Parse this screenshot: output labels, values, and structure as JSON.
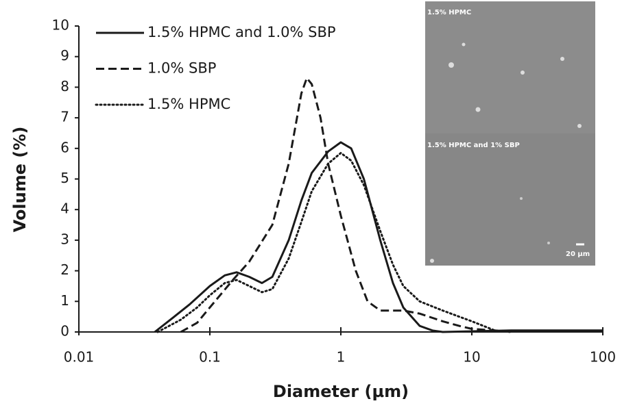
{
  "chart_data": {
    "type": "line",
    "x_label": "Diameter (µm)",
    "y_label": "Volume (%)",
    "x_scale": "log",
    "xlim": [
      0.01,
      100
    ],
    "xticks": [
      0.01,
      0.1,
      1,
      10,
      100
    ],
    "ylim": [
      0,
      10
    ],
    "yticks": [
      0,
      1,
      2,
      3,
      4,
      5,
      6,
      7,
      8,
      9,
      10
    ],
    "legend": "upper left",
    "series": [
      {
        "name": "1.5% HPMC and 1.0% SBP",
        "color": "#1a1a1a",
        "dash": "solid",
        "x": [
          0.038,
          0.05,
          0.07,
          0.1,
          0.13,
          0.16,
          0.2,
          0.25,
          0.3,
          0.4,
          0.5,
          0.6,
          0.8,
          1.0,
          1.2,
          1.5,
          2,
          2.5,
          3,
          4,
          5,
          6,
          20,
          100
        ],
        "values": [
          0,
          0.4,
          0.9,
          1.5,
          1.85,
          1.95,
          1.8,
          1.6,
          1.8,
          3.0,
          4.3,
          5.2,
          5.9,
          6.2,
          6.0,
          5.0,
          3.0,
          1.6,
          0.8,
          0.2,
          0.05,
          0,
          0.05,
          0.05
        ]
      },
      {
        "name": "1.0% SBP",
        "color": "#1a1a1a",
        "dash": "dashed",
        "x": [
          0.06,
          0.08,
          0.1,
          0.15,
          0.2,
          0.3,
          0.4,
          0.5,
          0.55,
          0.6,
          0.7,
          0.8,
          1,
          1.3,
          1.6,
          2,
          3,
          4,
          6,
          8,
          10,
          15,
          20
        ],
        "values": [
          0,
          0.3,
          0.8,
          1.7,
          2.3,
          3.5,
          5.5,
          7.8,
          8.3,
          8.1,
          7.0,
          5.5,
          3.8,
          2.0,
          1.0,
          0.7,
          0.7,
          0.6,
          0.35,
          0.2,
          0.1,
          0.05,
          0
        ]
      },
      {
        "name": "1.5% HPMC",
        "color": "#1a1a1a",
        "dash": "dotted",
        "x": [
          0.04,
          0.06,
          0.08,
          0.1,
          0.13,
          0.16,
          0.2,
          0.25,
          0.3,
          0.4,
          0.5,
          0.6,
          0.8,
          1,
          1.2,
          1.5,
          2,
          2.5,
          3,
          4,
          6,
          8,
          10,
          15,
          20
        ],
        "values": [
          0,
          0.4,
          0.8,
          1.2,
          1.6,
          1.7,
          1.5,
          1.3,
          1.4,
          2.4,
          3.6,
          4.6,
          5.5,
          5.85,
          5.6,
          4.8,
          3.3,
          2.2,
          1.5,
          1.0,
          0.7,
          0.5,
          0.35,
          0.05,
          0
        ]
      }
    ],
    "inset": {
      "top_label": "1.5% HPMC",
      "bottom_label": "1.5% HPMC and 1% SBP",
      "scale_label": "20 µm"
    }
  }
}
